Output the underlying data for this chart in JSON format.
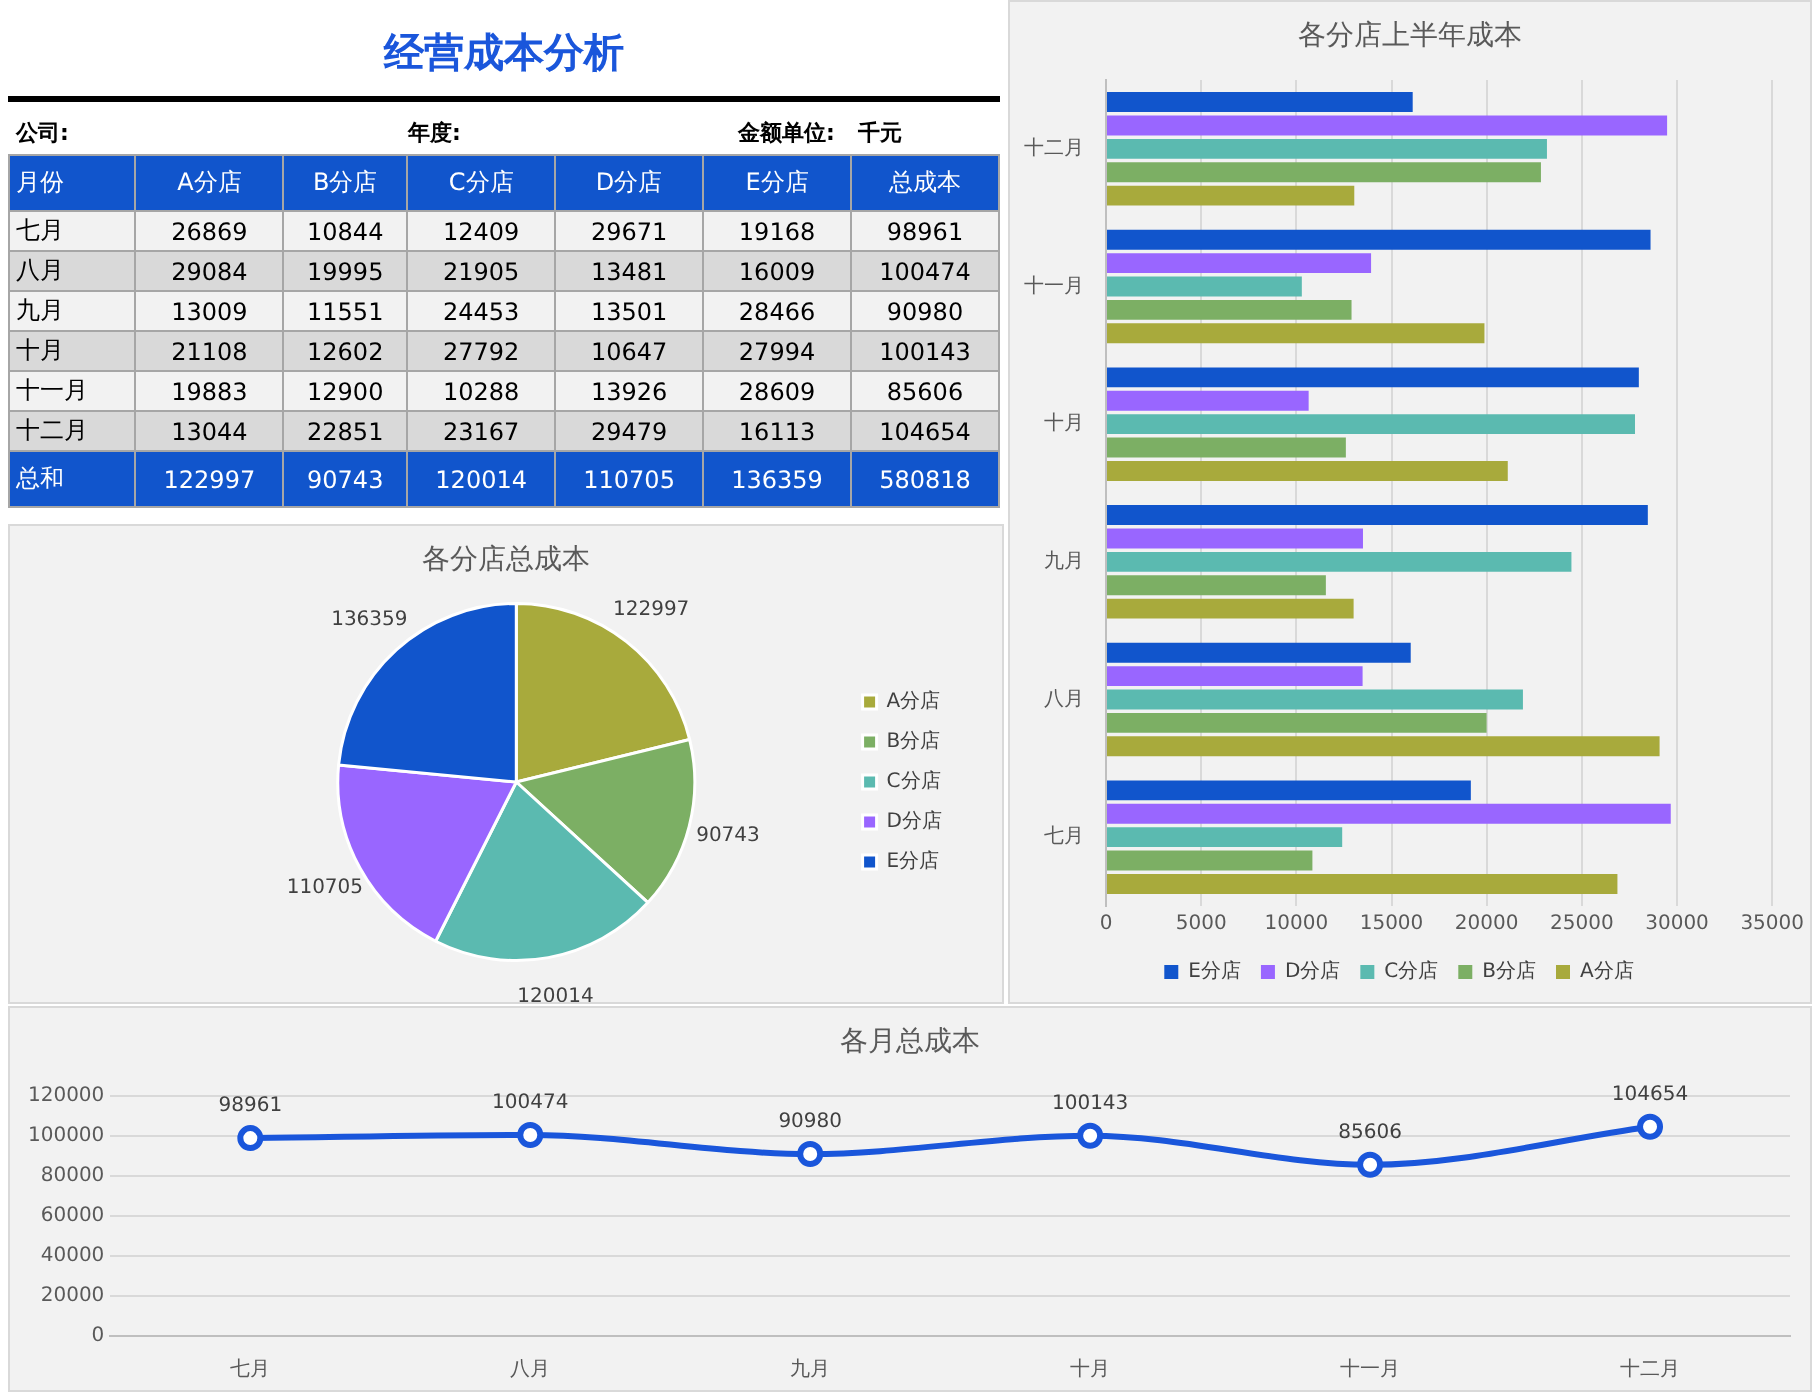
{
  "chart_data": [
    {
      "type": "other",
      "title": "经营成本分析",
      "annotations": [
        "公司:",
        "年度:",
        "金额单位:",
        "千元"
      ],
      "xlabel": "月份",
      "categories": [
        "七月",
        "八月",
        "九月",
        "十月",
        "十一月",
        "十二月",
        "总和"
      ],
      "data_labels": true,
      "series": [
        {
          "name": "A分店",
          "colors": [
            "#f2f2f2",
            "#d9d9d9",
            "#f2f2f2",
            "#d9d9d9",
            "#f2f2f2",
            "#d9d9d9",
            "#1155cc"
          ],
          "values": [
            26869,
            29084,
            13009,
            21108,
            19883,
            13044,
            122997
          ]
        },
        {
          "name": "B分店",
          "colors": [
            "#f2f2f2",
            "#d9d9d9",
            "#f2f2f2",
            "#d9d9d9",
            "#f2f2f2",
            "#d9d9d9",
            "#1155cc"
          ],
          "values": [
            10844,
            19995,
            11551,
            12602,
            12900,
            22851,
            90743
          ]
        },
        {
          "name": "C分店",
          "colors": [
            "#f2f2f2",
            "#d9d9d9",
            "#f2f2f2",
            "#d9d9d9",
            "#f2f2f2",
            "#d9d9d9",
            "#1155cc"
          ],
          "values": [
            12409,
            21905,
            24453,
            27792,
            10288,
            23167,
            120014
          ]
        },
        {
          "name": "D分店",
          "colors": [
            "#f2f2f2",
            "#d9d9d9",
            "#f2f2f2",
            "#d9d9d9",
            "#f2f2f2",
            "#d9d9d9",
            "#1155cc"
          ],
          "values": [
            29671,
            13481,
            13501,
            10647,
            13926,
            29479,
            110705
          ]
        },
        {
          "name": "E分店",
          "colors": [
            "#f2f2f2",
            "#d9d9d9",
            "#f2f2f2",
            "#d9d9d9",
            "#f2f2f2",
            "#d9d9d9",
            "#1155cc"
          ],
          "values": [
            19168,
            16009,
            28466,
            27994,
            28609,
            16113,
            136359
          ]
        },
        {
          "name": "总成本",
          "colors": [
            "#f2f2f2",
            "#d9d9d9",
            "#f2f2f2",
            "#d9d9d9",
            "#f2f2f2",
            "#d9d9d9",
            "#1155cc"
          ],
          "values": [
            98961,
            100474,
            90980,
            100143,
            85606,
            104654,
            580818
          ]
        }
      ]
    },
    {
      "type": "pie",
      "title": "各分店总成本",
      "categories": [
        "A分店",
        "B分店",
        "C分店",
        "D分店",
        "E分店"
      ],
      "values": [
        122997,
        90743,
        120014,
        110705,
        136359
      ],
      "colors": [
        "#a8aa3c",
        "#7caf64",
        "#5bbab0",
        "#9966ff",
        "#1155cc"
      ],
      "data_labels": true,
      "legend": "right"
    },
    {
      "type": "bar",
      "title": "各分店上半年成本",
      "orientation": "horizontal",
      "categories": [
        "十二月",
        "十一月",
        "十月",
        "九月",
        "八月",
        "七月"
      ],
      "xlim": [
        0,
        35000
      ],
      "xticks": [
        0,
        5000,
        10000,
        15000,
        20000,
        25000,
        30000,
        35000
      ],
      "grid": "x",
      "legend": "bottom",
      "series": [
        {
          "name": "E分店",
          "color": "#1155cc",
          "values": [
            16113,
            28609,
            27994,
            28466,
            16009,
            19168
          ]
        },
        {
          "name": "D分店",
          "color": "#9966ff",
          "values": [
            29479,
            13926,
            10647,
            13501,
            13481,
            29671
          ]
        },
        {
          "name": "C分店",
          "color": "#5bbab0",
          "values": [
            23167,
            10288,
            27792,
            24453,
            21905,
            12409
          ]
        },
        {
          "name": "B分店",
          "color": "#7caf64",
          "values": [
            22851,
            12900,
            12602,
            11551,
            19995,
            10844
          ]
        },
        {
          "name": "A分店",
          "color": "#a8aa3c",
          "values": [
            13044,
            19883,
            21108,
            13009,
            29084,
            26869
          ]
        }
      ]
    },
    {
      "type": "line",
      "title": "各月总成本",
      "categories": [
        "七月",
        "八月",
        "九月",
        "十月",
        "十一月",
        "十二月"
      ],
      "values": [
        98961,
        100474,
        90980,
        100143,
        85606,
        104654
      ],
      "color": "#1a56db",
      "ylim": [
        0,
        120000
      ],
      "yticks": [
        0,
        20000,
        40000,
        60000,
        80000,
        100000,
        120000
      ],
      "grid": "y",
      "marker": "circle",
      "data_labels": true
    }
  ]
}
